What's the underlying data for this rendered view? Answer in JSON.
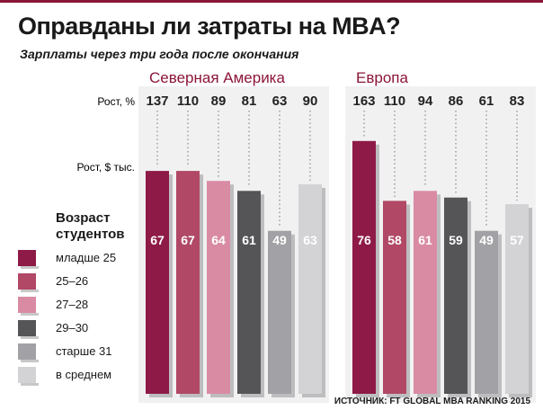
{
  "title": "Оправданы ли затраты на MBA?",
  "subtitle": "Зарплаты через три года после окончания",
  "source": "ИСТОЧНИК: FT GLOBAL MBA RANKING 2015",
  "row_labels": {
    "growth_pct": "Рост, %",
    "growth_usd": "Рост, $ тыс."
  },
  "legend": {
    "title": "Возраст\nстудентов",
    "items": [
      {
        "label": "младше 25",
        "color": "#8e1a47"
      },
      {
        "label": "25–26",
        "color": "#b04866"
      },
      {
        "label": "27–28",
        "color": "#d98ba3"
      },
      {
        "label": "29–30",
        "color": "#555558"
      },
      {
        "label": "старше 31",
        "color": "#a2a2a6"
      },
      {
        "label": "в среднем",
        "color": "#d3d3d5"
      }
    ]
  },
  "colors": {
    "region_label": "#8b1538"
  },
  "chart_data": {
    "type": "bar",
    "categories": [
      "младше 25",
      "25–26",
      "27–28",
      "29–30",
      "старше 31",
      "в среднем"
    ],
    "groups": [
      {
        "name": "Северная Америка",
        "values": [
          67,
          67,
          64,
          61,
          49,
          63
        ],
        "growth_pct": [
          137,
          110,
          89,
          81,
          63,
          90
        ]
      },
      {
        "name": "Европа",
        "values": [
          76,
          58,
          61,
          59,
          49,
          57
        ],
        "growth_pct": [
          163,
          110,
          94,
          86,
          61,
          83
        ]
      }
    ],
    "ylabel": "Рост, $ тыс.",
    "ylim": [
      0,
      80
    ],
    "grid": false
  }
}
